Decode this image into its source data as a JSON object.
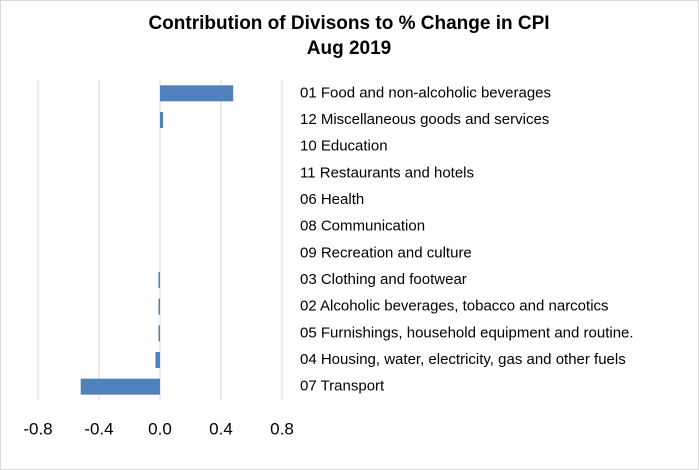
{
  "chart_data": {
    "type": "barh",
    "title": "Contribution of Divisons to % Change in CPI",
    "subtitle": "Aug 2019",
    "categories": [
      "01 Food and non-alcoholic beverages",
      "12 Miscellaneous goods and services",
      "10 Education",
      "11 Restaurants and hotels",
      "06 Health",
      "08 Communication",
      "09 Recreation and culture",
      "03 Clothing and footwear",
      "02 Alcoholic beverages, tobacco and narcotics",
      "05 Furnishings, household equipment and routine.",
      "04 Housing, water, electricity, gas and other fuels",
      "07 Transport"
    ],
    "values": [
      0.48,
      0.02,
      0,
      0,
      0,
      0,
      0,
      -0.01,
      -0.01,
      -0.01,
      -0.03,
      -0.52
    ],
    "color": "#4f81bd",
    "xlim": [
      -0.8,
      0.8
    ],
    "xticks": [
      -0.8,
      -0.4,
      {
        "value": 0,
        "label": "0.0"
      },
      0.4,
      0.8
    ],
    "grid": true
  }
}
